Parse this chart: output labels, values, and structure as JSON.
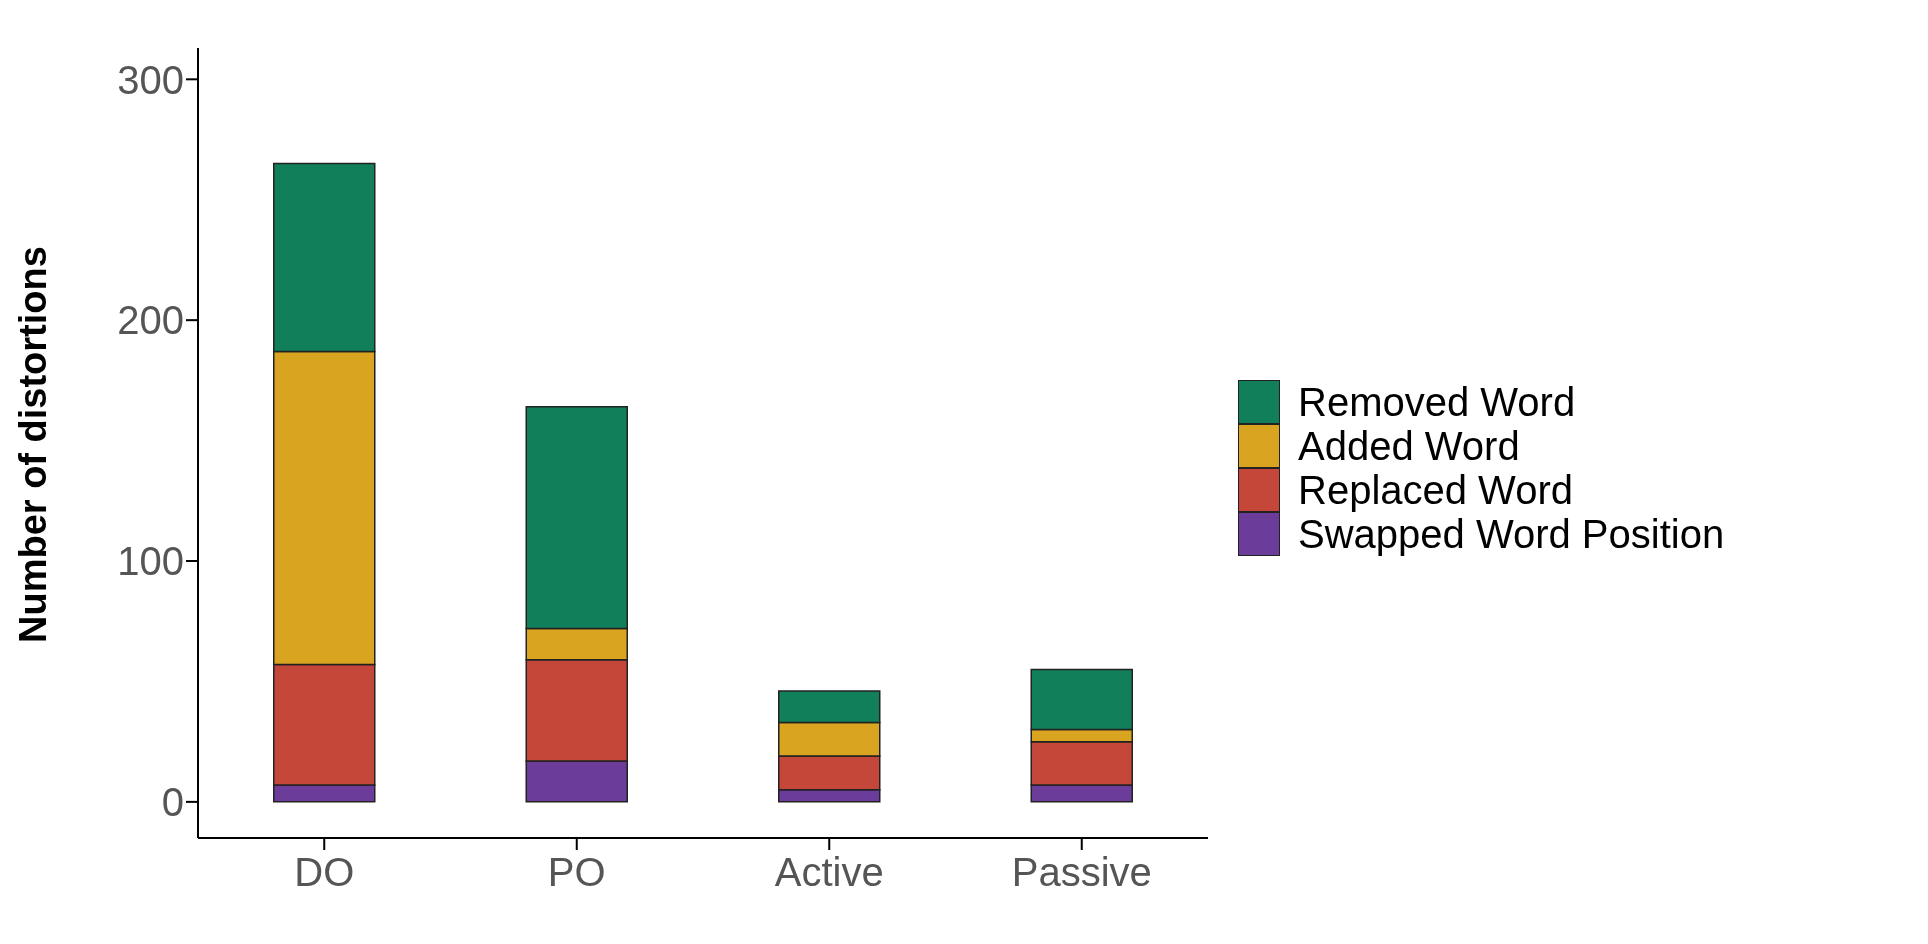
{
  "chart_data": {
    "type": "bar",
    "stacked": true,
    "ylabel": "Number of distortions",
    "categories": [
      "DO",
      "PO",
      "Active",
      "Passive"
    ],
    "series": [
      {
        "name": "Swapped Word Position",
        "color": "#6b3c9a",
        "values": [
          7,
          17,
          5,
          7
        ]
      },
      {
        "name": "Replaced Word",
        "color": "#c5473a",
        "values": [
          50,
          42,
          14,
          18
        ]
      },
      {
        "name": "Added Word",
        "color": "#d9a521",
        "values": [
          130,
          13,
          14,
          5
        ]
      },
      {
        "name": "Removed Word",
        "color": "#117f5a",
        "values": [
          78,
          92,
          13,
          25
        ]
      }
    ],
    "ylim": [
      -15,
      313
    ],
    "yticks": [
      0,
      100,
      200,
      300
    ],
    "grid": false,
    "legend": "right"
  }
}
